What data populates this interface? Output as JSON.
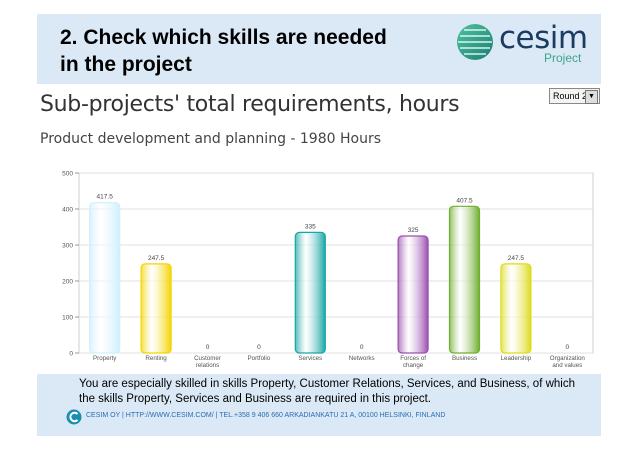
{
  "slide": {
    "title": "2. Check which skills are needed\nin the project",
    "logo": {
      "word": "cesim",
      "sub": "Project"
    }
  },
  "panel": {
    "title": "Sub-projects' total requirements, hours",
    "round_selector": {
      "selected": "Round 2"
    },
    "subtitle": "Product development and planning - 1980 Hours"
  },
  "chart_data": {
    "type": "bar",
    "categories": [
      "Property",
      "Renting",
      "Customer relations",
      "Portfolio",
      "Services",
      "Networks",
      "Forces of change",
      "Business",
      "Leadership",
      "Organization and values"
    ],
    "category_lines": [
      [
        "Property"
      ],
      [
        "Renting"
      ],
      [
        "Customer",
        "relations"
      ],
      [
        "Portfolio"
      ],
      [
        "Services"
      ],
      [
        "Networks"
      ],
      [
        "Forces of",
        "change"
      ],
      [
        "Business"
      ],
      [
        "Leadership"
      ],
      [
        "Organization",
        "and values"
      ]
    ],
    "values": [
      417.5,
      247.5,
      0,
      0,
      335,
      0,
      325,
      407.5,
      247.5,
      0
    ],
    "value_labels": [
      "417.5",
      "247.5",
      "0",
      "0",
      "335",
      "0",
      "325",
      "407.5",
      "247.5",
      "0"
    ],
    "colors": [
      "#cfefff",
      "#f5d400",
      "#ffffff",
      "#ffffff",
      "#19a6a6",
      "#ffffff",
      "#9b4fb0",
      "#6fae2f",
      "#dcdc1c",
      "#ffffff"
    ],
    "ylim": [
      0,
      500
    ],
    "yticks": [
      0,
      100,
      200,
      300,
      400,
      500
    ],
    "grid": true
  },
  "footer": {
    "note": "You are especially skilled in skills Property, Customer Relations, Services, and Business, of which the skills Property, Services and Business are required in this project.",
    "contact": "CESIM OY | HTTP://WWW.CESIM.COM/ | TEL.+358 9 406 660    ARKADIANKATU 21 A, 00100 HELSINKI, FINLAND"
  }
}
